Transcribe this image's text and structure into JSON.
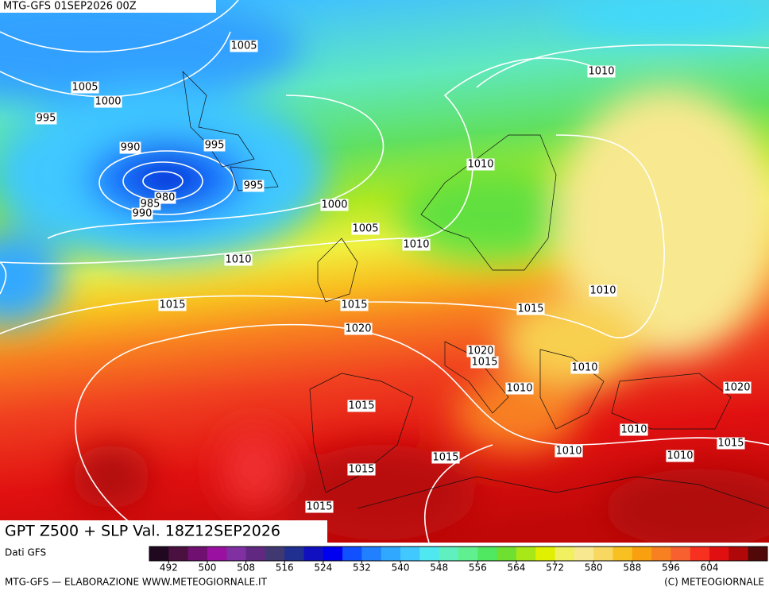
{
  "header": {
    "run": "MTG-GFS 01SEP2026 00Z",
    "title": "GPT Z500 + SLP Val. 18Z12SEP2026",
    "source": "Dati GFS"
  },
  "colorbar": {
    "range": [
      488,
      616
    ],
    "ticks": [
      492,
      500,
      508,
      516,
      524,
      532,
      540,
      548,
      556,
      564,
      572,
      580,
      588,
      596,
      604
    ],
    "colors": [
      "#200820",
      "#4a1040",
      "#701070",
      "#9a10a0",
      "#8030a0",
      "#602880",
      "#403870",
      "#203090",
      "#1010c0",
      "#0000f0",
      "#1050ff",
      "#2080ff",
      "#30a8ff",
      "#40c8ff",
      "#50e8f0",
      "#60f0c0",
      "#60f090",
      "#50e860",
      "#70e030",
      "#a8e818",
      "#e0f000",
      "#f0f060",
      "#f8e890",
      "#f8d860",
      "#f8c020",
      "#f8a010",
      "#f88020",
      "#f86030",
      "#f83020",
      "#e01010",
      "#b00808",
      "#500808"
    ]
  },
  "isobar_labels": [
    "1005",
    "1010",
    "1005",
    "1000",
    "995",
    "990",
    "995",
    "980",
    "985",
    "990",
    "995",
    "1010",
    "1000",
    "1005",
    "1010",
    "1010",
    "1010",
    "1015",
    "1015",
    "1015",
    "1020",
    "1020",
    "1015",
    "1010",
    "1010",
    "1020",
    "1015",
    "1010",
    "1015",
    "1010",
    "1015",
    "1010",
    "1015",
    "1015"
  ],
  "footer": {
    "left": "MTG-GFS — ELABORAZIONE WWW.METEOGIORNALE.IT",
    "right": "(C) METEOGIORNALE"
  }
}
